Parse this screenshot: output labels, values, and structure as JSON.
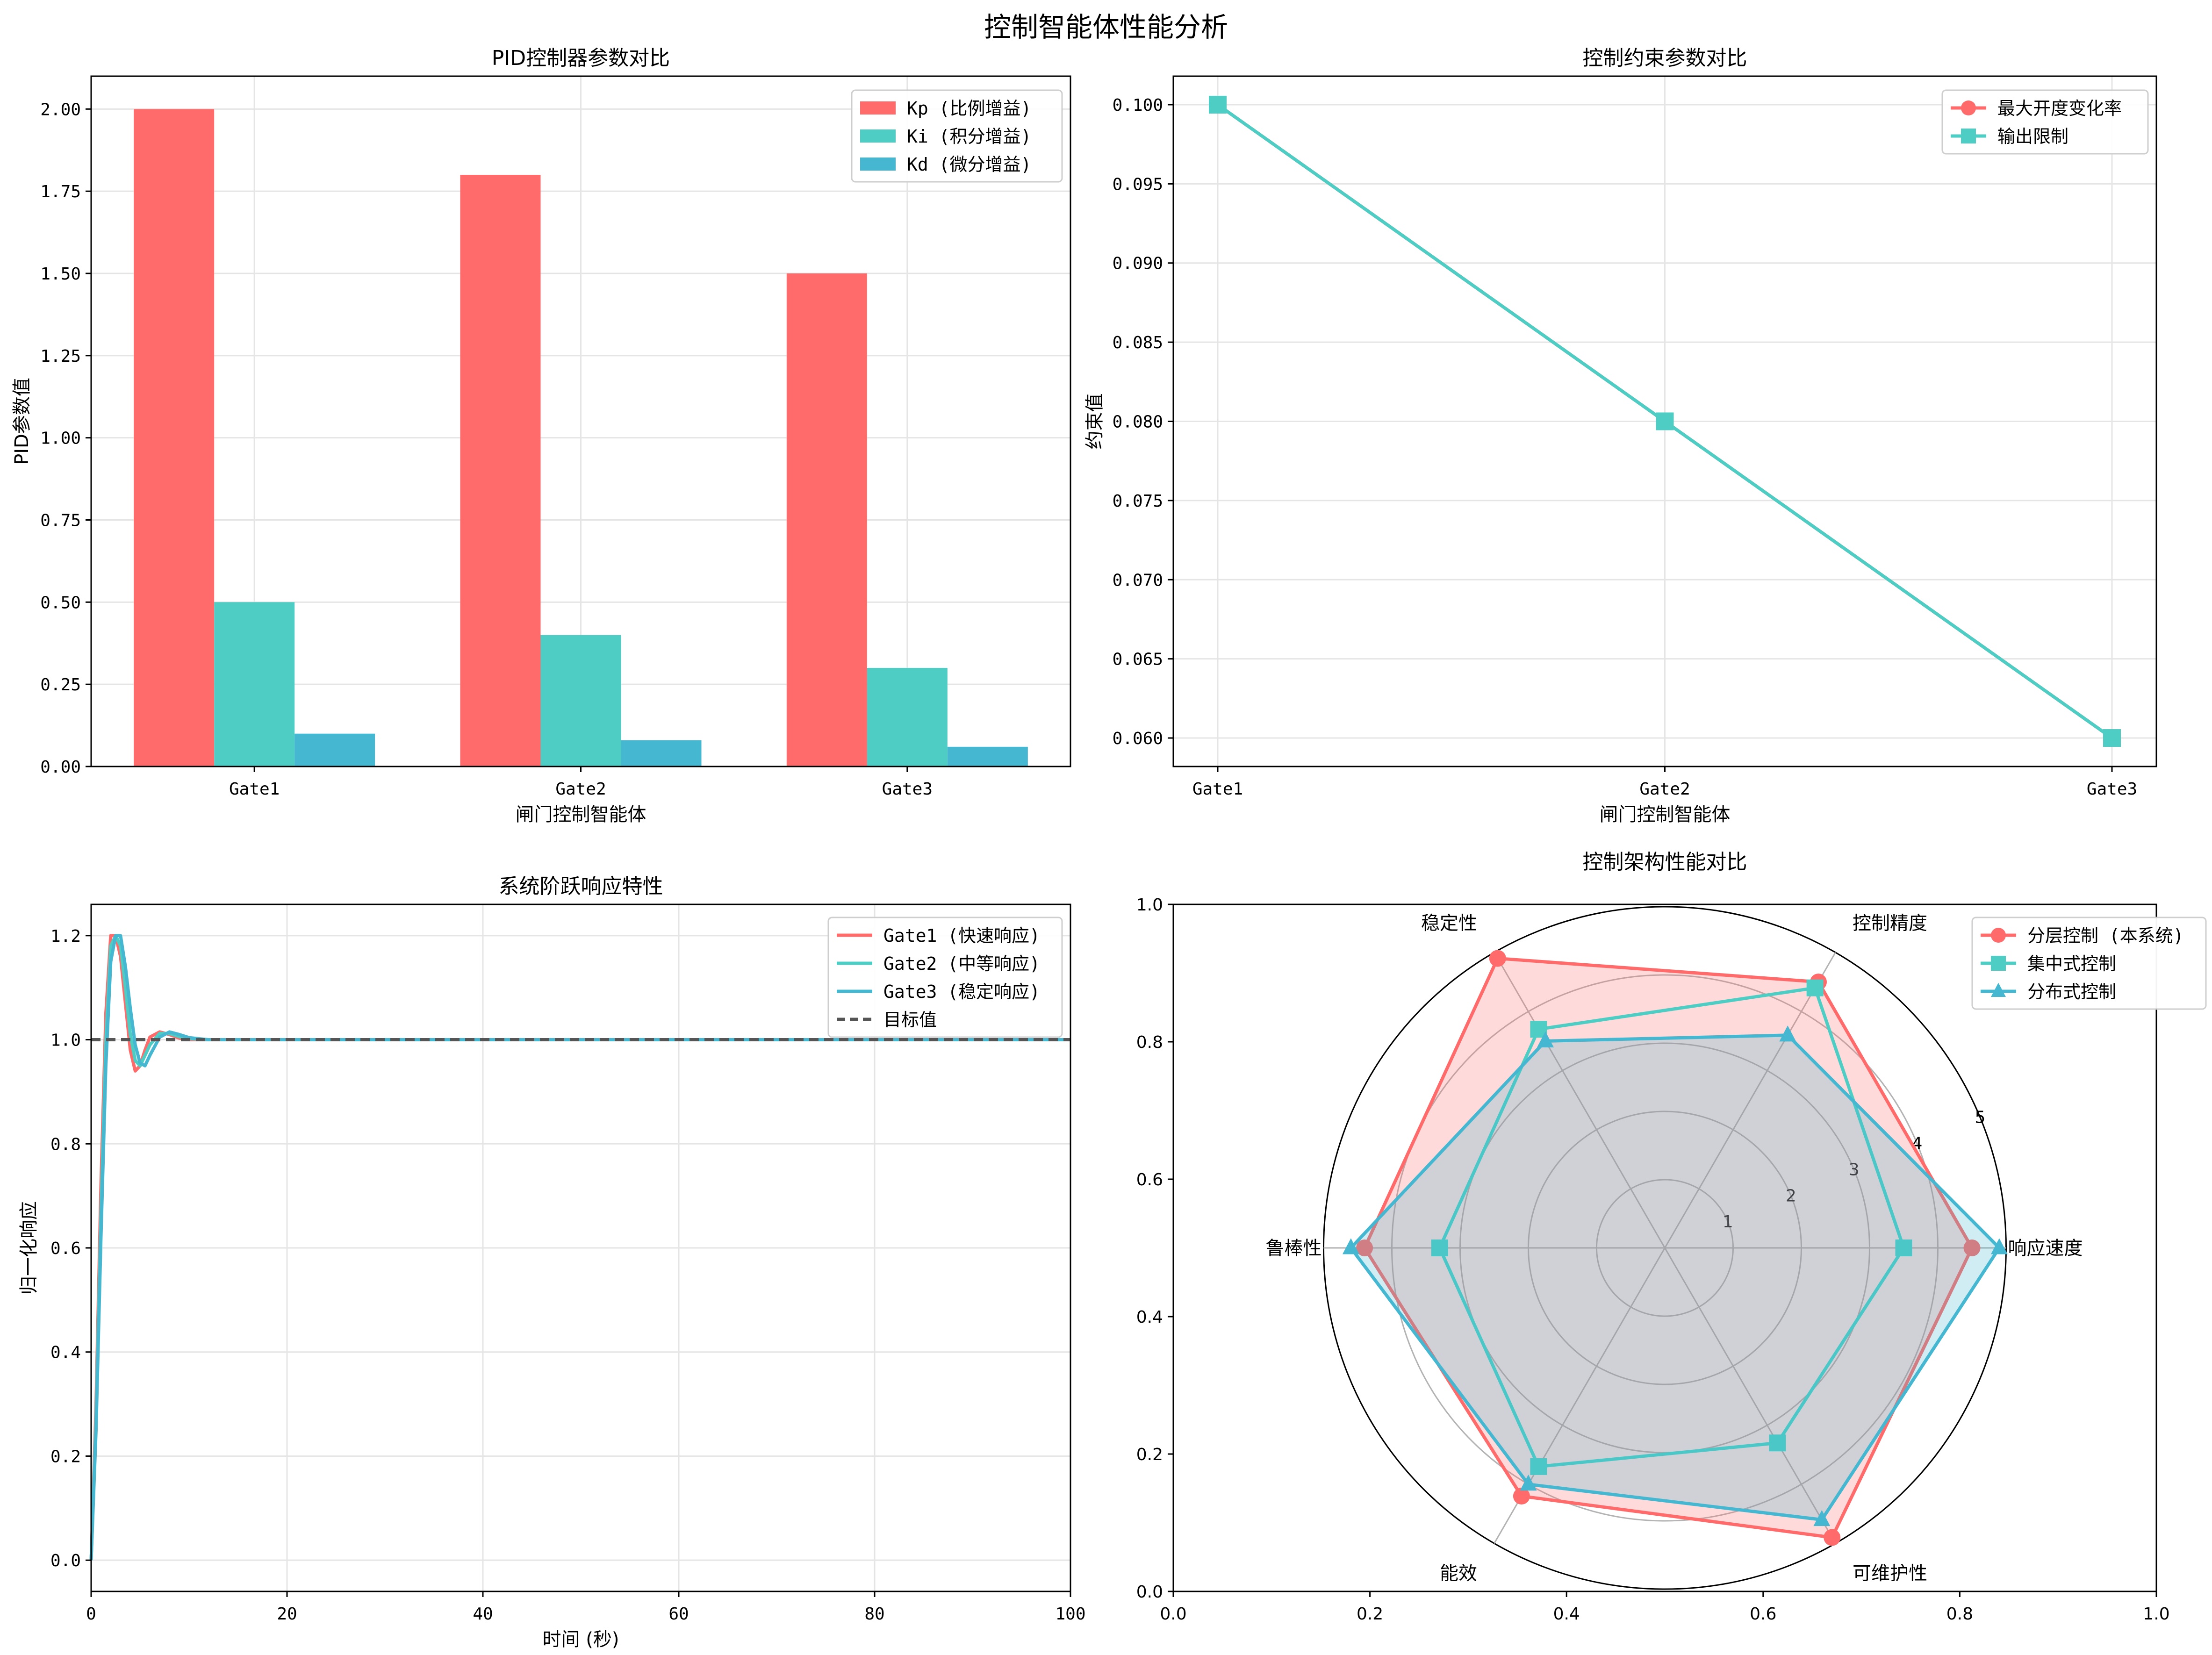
{
  "figure_title": "控制智能体性能分析",
  "colors": {
    "red": "#FF6B6B",
    "teal": "#4ECDC4",
    "blue": "#45B7D1",
    "target": "#555555",
    "grid": "#e5e5e5"
  },
  "chart_data": [
    {
      "id": "pid",
      "type": "bar",
      "title": "PID控制器参数对比",
      "xlabel": "闸门控制智能体",
      "ylabel": "PID参数值",
      "categories": [
        "Gate1",
        "Gate2",
        "Gate3"
      ],
      "series": [
        {
          "name": "Kp (比例增益)",
          "color": "#FF6B6B",
          "values": [
            2.0,
            1.8,
            1.5
          ]
        },
        {
          "name": "Ki (积分增益)",
          "color": "#4ECDC4",
          "values": [
            0.5,
            0.4,
            0.3
          ]
        },
        {
          "name": "Kd (微分增益)",
          "color": "#45B7D1",
          "values": [
            0.1,
            0.08,
            0.06
          ]
        }
      ],
      "ylim": [
        0,
        2.1
      ],
      "yticks": [
        "0.00",
        "0.25",
        "0.50",
        "0.75",
        "1.00",
        "1.25",
        "1.50",
        "1.75",
        "2.00"
      ],
      "grid": true,
      "legend": "top-right"
    },
    {
      "id": "constraint",
      "type": "line",
      "title": "控制约束参数对比",
      "xlabel": "闸门控制智能体",
      "ylabel": "约束值",
      "categories": [
        "Gate1",
        "Gate2",
        "Gate3"
      ],
      "series": [
        {
          "name": "最大开度变化率",
          "color": "#FF6B6B",
          "marker": "circle",
          "values": [
            0.1,
            0.08,
            0.06
          ]
        },
        {
          "name": "输出限制",
          "color": "#4ECDC4",
          "marker": "square",
          "values": [
            0.1,
            0.08,
            0.06
          ]
        }
      ],
      "ylim": [
        0.0582,
        0.1018
      ],
      "yticks": [
        "0.060",
        "0.065",
        "0.070",
        "0.075",
        "0.080",
        "0.085",
        "0.090",
        "0.095",
        "0.100"
      ],
      "grid": true,
      "legend": "top-right"
    },
    {
      "id": "step",
      "type": "line",
      "title": "系统阶跃响应特性",
      "xlabel": "时间 (秒)",
      "ylabel": "归一化响应",
      "xlim": [
        0,
        100
      ],
      "ylim": [
        -0.06,
        1.26
      ],
      "xticks": [
        "0",
        "20",
        "40",
        "60",
        "80",
        "100"
      ],
      "yticks": [
        "0.0",
        "0.2",
        "0.4",
        "0.6",
        "0.8",
        "1.0",
        "1.2"
      ],
      "series": [
        {
          "name": "Gate1 (快速响应)",
          "color": "#FF6B6B",
          "x": [
            0,
            0.5,
            1,
            1.5,
            2,
            2.5,
            3,
            3.5,
            4,
            4.5,
            5,
            5.5,
            6,
            7,
            8,
            9,
            10,
            12,
            15,
            100
          ],
          "values": [
            0,
            0.3,
            0.72,
            1.05,
            1.2,
            1.2,
            1.16,
            1.07,
            0.98,
            0.94,
            0.95,
            0.98,
            1.005,
            1.015,
            1.01,
            1.003,
            1.0,
            1.0,
            1.0,
            1.0
          ]
        },
        {
          "name": "Gate2 (中等响应)",
          "color": "#4ECDC4",
          "x": [
            0,
            0.5,
            1,
            1.5,
            2,
            2.5,
            3,
            3.5,
            4,
            4.5,
            5,
            5.5,
            6,
            7,
            8,
            9,
            10,
            12,
            15,
            100
          ],
          "values": [
            0,
            0.27,
            0.66,
            1.0,
            1.18,
            1.2,
            1.18,
            1.1,
            1.01,
            0.96,
            0.95,
            0.97,
            0.99,
            1.012,
            1.012,
            1.006,
            1.002,
            1.0,
            1.0,
            1.0
          ]
        },
        {
          "name": "Gate3 (稳定响应)",
          "color": "#45B7D1",
          "x": [
            0,
            0.5,
            1,
            1.5,
            2,
            2.5,
            3,
            3.5,
            4,
            4.5,
            5,
            5.5,
            6,
            7,
            8,
            9,
            10,
            12,
            15,
            100
          ],
          "values": [
            0,
            0.25,
            0.62,
            0.95,
            1.15,
            1.2,
            1.2,
            1.14,
            1.06,
            0.99,
            0.955,
            0.95,
            0.97,
            1.005,
            1.015,
            1.01,
            1.004,
            1.0,
            1.0,
            1.0
          ]
        },
        {
          "name": "目标值",
          "color": "#555555",
          "dashed": true,
          "x": [
            0,
            100
          ],
          "values": [
            1.0,
            1.0
          ]
        }
      ],
      "grid": true,
      "legend": "top-right"
    },
    {
      "id": "radar",
      "type": "radar",
      "title": "控制架构性能对比",
      "axes": [
        "响应速度",
        "控制精度",
        "稳定性",
        "鲁棒性",
        "能效",
        "可维护性"
      ],
      "rmax": 5,
      "rticks": [
        "1",
        "2",
        "3",
        "4",
        "5"
      ],
      "outer_xticks": [
        "0.0",
        "0.2",
        "0.4",
        "0.6",
        "0.8",
        "1.0"
      ],
      "outer_yticks": [
        "0.0",
        "0.2",
        "0.4",
        "0.6",
        "0.8",
        "1.0"
      ],
      "series": [
        {
          "name": "分层控制 (本系统)",
          "color": "#FF6B6B",
          "marker": "circle",
          "values": [
            4.5,
            4.5,
            4.9,
            4.4,
            4.2,
            4.9
          ],
          "fill": true
        },
        {
          "name": "集中式控制",
          "color": "#4ECDC4",
          "marker": "square",
          "values": [
            3.5,
            4.4,
            3.7,
            3.3,
            3.7,
            3.3
          ],
          "fill": false
        },
        {
          "name": "分布式控制",
          "color": "#45B7D1",
          "marker": "triangle",
          "values": [
            4.9,
            3.6,
            3.5,
            4.6,
            4.0,
            4.6
          ],
          "fill": true
        }
      ],
      "legend": "top-right"
    }
  ]
}
